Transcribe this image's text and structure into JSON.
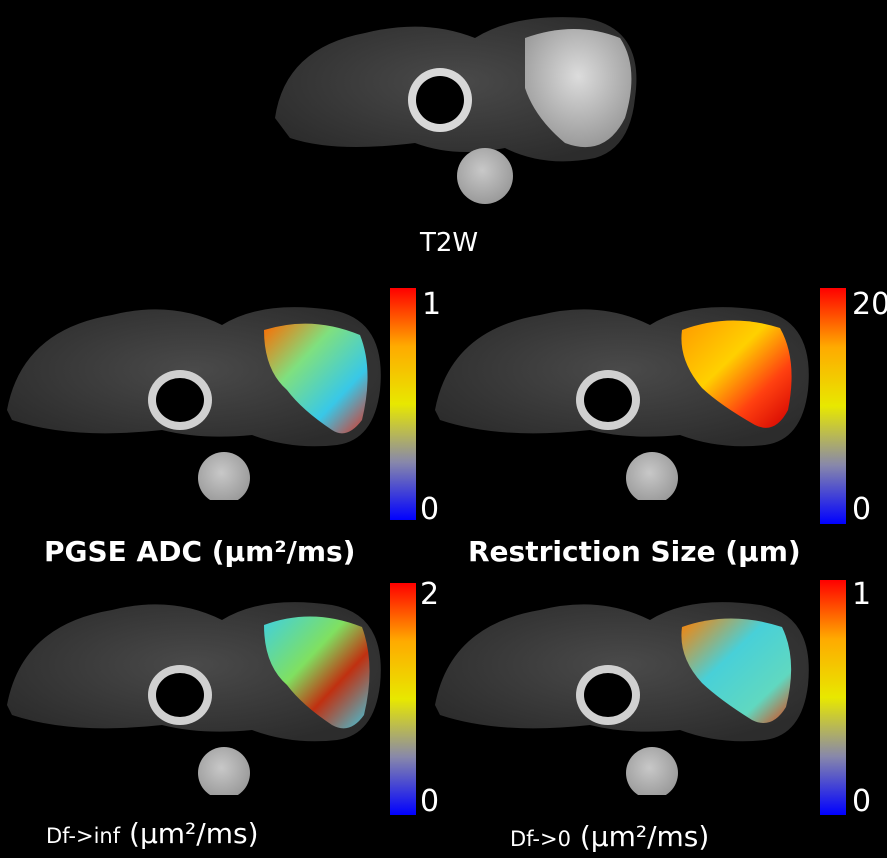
{
  "colorbar": {
    "gradient": [
      "#0000ff",
      "#8888aa",
      "#e8e800",
      "#ffaa00",
      "#ff0000"
    ]
  },
  "panels": {
    "t2w": {
      "label": "T2W"
    },
    "pgse_adc": {
      "label": "PGSE ADC (µm²/ms)",
      "max": "1",
      "min": "0"
    },
    "restriction_size": {
      "label": "Restriction Size (µm)",
      "max": "20",
      "min": "0"
    },
    "df_inf": {
      "label_prefix": "Df->inf",
      "label_unit": " (µm²/ms)",
      "max": "2",
      "min": "0"
    },
    "df_0": {
      "label_prefix": "Df->0",
      "label_unit": " (µm²/ms)",
      "max": "1",
      "min": "0"
    }
  }
}
